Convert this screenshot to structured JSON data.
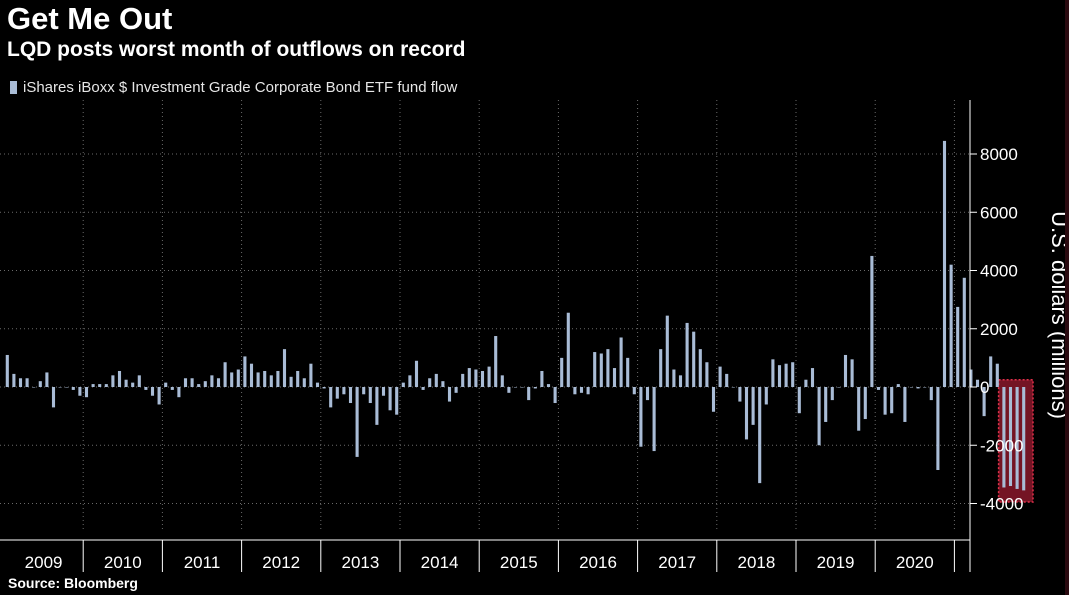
{
  "title": "Get Me Out",
  "subtitle": "LQD posts worst month of outflows on record",
  "source": "Source: Bloomberg",
  "colors": {
    "background": "#000000",
    "bar": "#a9bcd6",
    "grid": "#6a6a6a",
    "highlight_fill": "#9b1b30",
    "highlight_border": "#e0304a"
  },
  "chart_data": {
    "type": "bar",
    "title": "Get Me Out",
    "subtitle": "LQD posts worst month of outflows on record",
    "xlabel": "",
    "ylabel": "U.S. dollars (millions)",
    "ylim": [
      -4500,
      9200
    ],
    "yticks": [
      -4000,
      -2000,
      0,
      2000,
      4000,
      6000,
      8000
    ],
    "grid": true,
    "legend_position": "top-left",
    "series": [
      {
        "name": "iShares iBoxx $ Investment Grade Corporate Bond ETF fund flow",
        "start": "2009-01",
        "values": [
          1100,
          450,
          300,
          300,
          0,
          200,
          500,
          -700,
          0,
          0,
          -100,
          -300,
          -350,
          100,
          100,
          100,
          400,
          550,
          250,
          150,
          400,
          -100,
          -300,
          -600,
          150,
          -100,
          -350,
          300,
          300,
          100,
          200,
          400,
          300,
          850,
          500,
          600,
          1050,
          800,
          500,
          550,
          400,
          550,
          1300,
          350,
          550,
          300,
          800,
          150,
          -50,
          -700,
          -400,
          -250,
          -550,
          -2400,
          -250,
          -550,
          -1300,
          -300,
          -800,
          -950,
          150,
          400,
          900,
          -100,
          300,
          450,
          200,
          -500,
          -200,
          450,
          650,
          600,
          550,
          700,
          1750,
          400,
          -200,
          0,
          0,
          -450,
          -50,
          550,
          100,
          -550,
          1000,
          2550,
          -250,
          -200,
          -250,
          1200,
          1150,
          1300,
          650,
          1700,
          1000,
          -250,
          -2050,
          -450,
          -2200,
          1300,
          2450,
          600,
          400,
          2200,
          1900,
          1300,
          850,
          -850,
          700,
          450,
          0,
          -500,
          -1800,
          -1300,
          -3300,
          -600,
          950,
          750,
          800,
          850,
          -900,
          250,
          650,
          -2000,
          -1200,
          -450,
          0,
          1100,
          950,
          -1500,
          -1100,
          4500,
          -100,
          -950,
          -900,
          100,
          -1200,
          0,
          -50,
          0,
          -450,
          -2850,
          8450,
          4200,
          2750,
          3750,
          600,
          250,
          -1000,
          1050,
          800
        ]
      }
    ],
    "highlight_values": [
      -3450,
      -3400,
      -3500,
      -3550
    ],
    "year_labels": [
      "2009",
      "2010",
      "2011",
      "2012",
      "2013",
      "2014",
      "2015",
      "2016",
      "2017",
      "2018",
      "2019",
      "2020"
    ]
  }
}
